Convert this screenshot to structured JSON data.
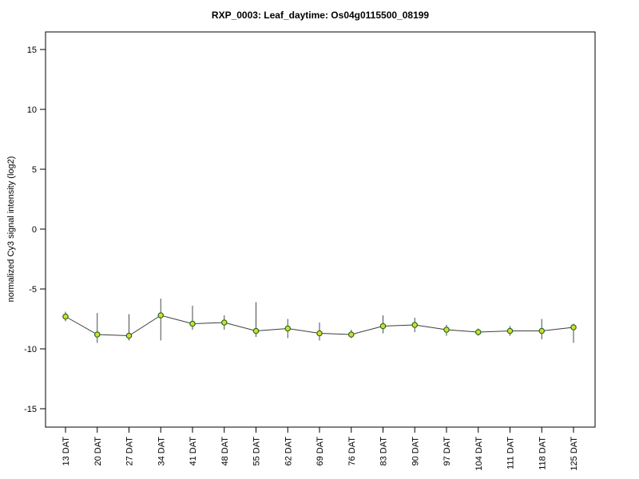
{
  "title": "RXP_0003: Leaf_daytime: Os04g0115500_08199",
  "chart_data": {
    "type": "line",
    "title": "RXP_0003: Leaf_daytime: Os04g0115500_08199",
    "xlabel": "",
    "ylabel": "normalized Cy3 signal intensity (log2)",
    "categories": [
      "13 DAT",
      "20 DAT",
      "27 DAT",
      "34 DAT",
      "41 DAT",
      "48 DAT",
      "55 DAT",
      "62 DAT",
      "69 DAT",
      "76 DAT",
      "83 DAT",
      "90 DAT",
      "97 DAT",
      "104 DAT",
      "111 DAT",
      "118 DAT",
      "125 DAT"
    ],
    "values": [
      -7.3,
      -8.8,
      -8.9,
      -7.2,
      -7.9,
      -7.8,
      -8.5,
      -8.3,
      -8.7,
      -8.8,
      -8.1,
      -8.0,
      -8.4,
      -8.6,
      -8.5,
      -8.5,
      -8.2
    ],
    "error_upper": [
      -6.9,
      -7.0,
      -7.1,
      -5.8,
      -6.4,
      -7.2,
      -6.1,
      -7.5,
      -7.8,
      -8.4,
      -7.2,
      -7.4,
      -8.0,
      -8.3,
      -8.1,
      -7.5,
      -7.9
    ],
    "error_lower": [
      -7.7,
      -9.5,
      -9.3,
      -9.3,
      -8.4,
      -8.4,
      -9.0,
      -9.1,
      -9.3,
      -9.1,
      -8.7,
      -8.6,
      -8.9,
      -8.9,
      -8.9,
      -9.2,
      -9.5
    ],
    "yticks": [
      -15,
      -10,
      -5,
      0,
      5,
      10,
      15
    ],
    "ylim": [
      -16.5,
      16.5
    ],
    "grid": false,
    "legend": "none",
    "axis_color": "#000000",
    "line_color": "#3c3c3c",
    "error_color": "#4a4a4a",
    "point_fill": "#d4de2a",
    "point_stroke": "#1f6b1f"
  }
}
